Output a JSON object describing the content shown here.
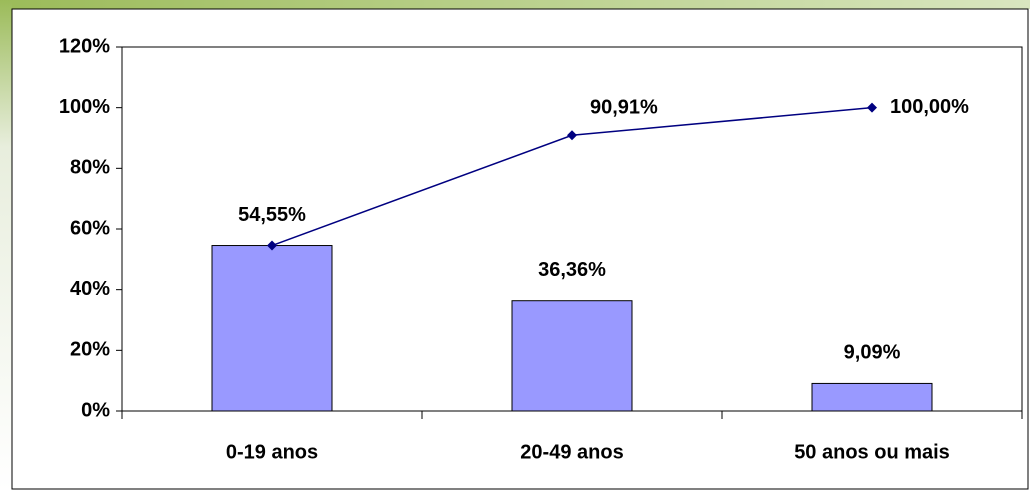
{
  "chart_data": {
    "type": "bar",
    "categories": [
      "0-19 anos",
      "20-49 anos",
      "50 anos ou mais"
    ],
    "series": [
      {
        "type": "bar",
        "color": "#9999ff",
        "values": [
          54.55,
          36.36,
          9.09
        ],
        "value_labels": [
          "54,55%",
          "36,36%",
          "9,09%"
        ]
      },
      {
        "type": "line",
        "color": "#000080",
        "values": [
          54.55,
          90.91,
          100.0
        ],
        "value_labels": [
          null,
          "90,91%",
          "100,00%"
        ]
      }
    ],
    "ylim": [
      0,
      120
    ],
    "yticks": [
      {
        "value": 0,
        "label": "0%"
      },
      {
        "value": 20,
        "label": "20%"
      },
      {
        "value": 40,
        "label": "40%"
      },
      {
        "value": 60,
        "label": "60%"
      },
      {
        "value": 80,
        "label": "80%"
      },
      {
        "value": 100,
        "label": "100%"
      },
      {
        "value": 120,
        "label": "120%"
      }
    ]
  }
}
